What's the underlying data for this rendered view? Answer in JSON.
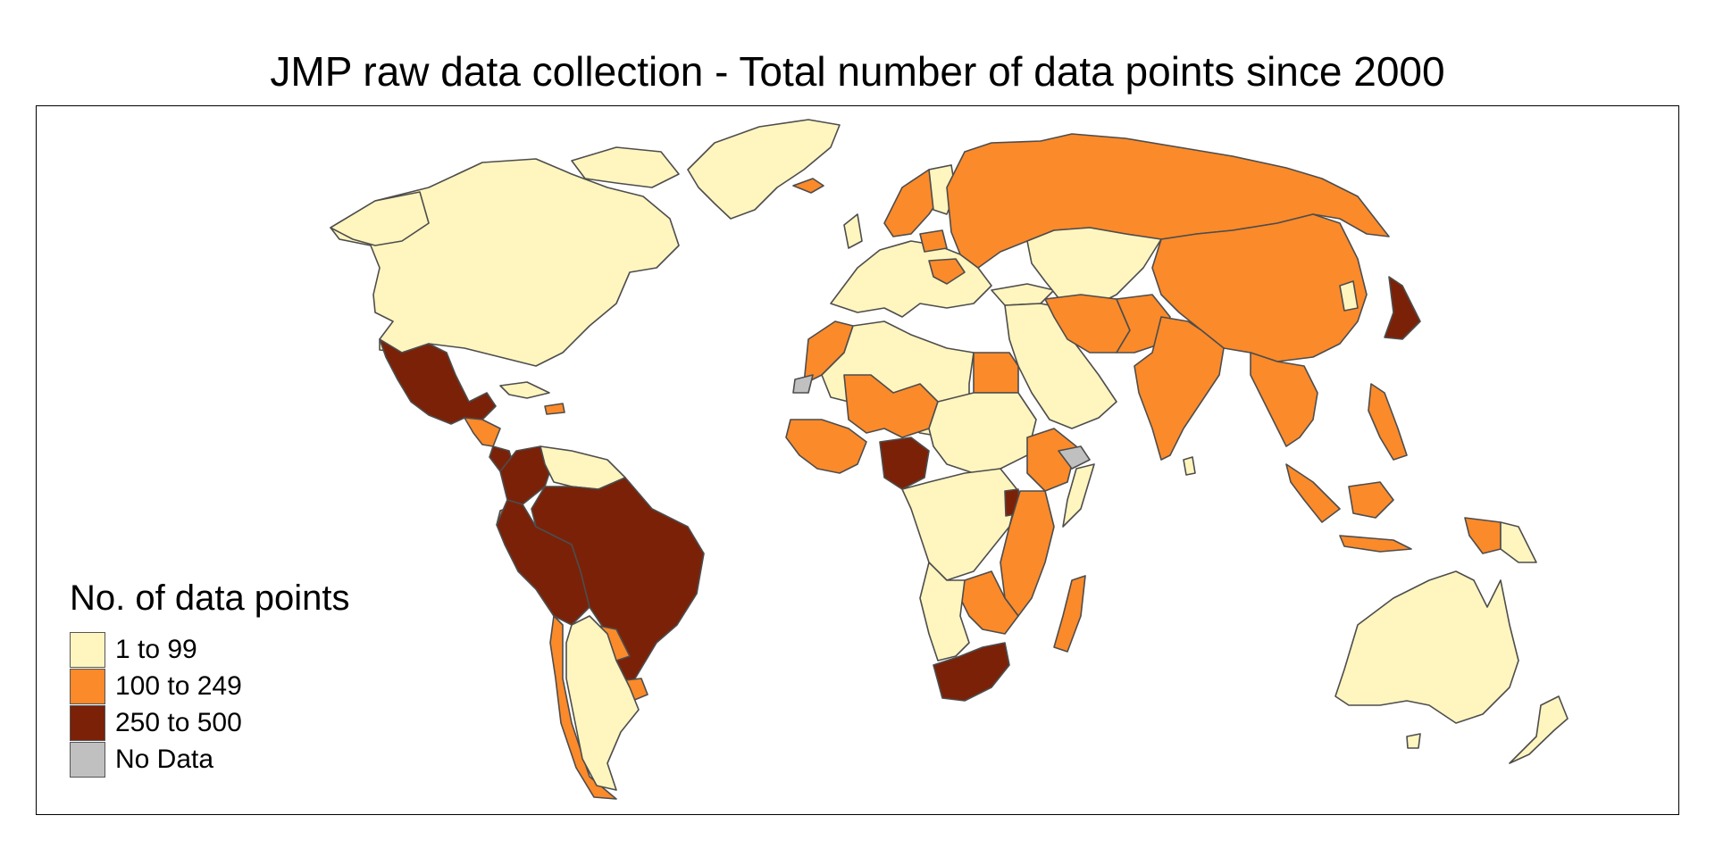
{
  "title": "JMP raw data collection - Total number of data points since 2000",
  "legend": {
    "title": "No. of data points",
    "items": [
      {
        "label": "1 to 99",
        "color": "#fff5bf"
      },
      {
        "label": "100 to 249",
        "color": "#fb8a2a"
      },
      {
        "label": "250 to 500",
        "color": "#7b2108"
      },
      {
        "label": "No Data",
        "color": "#c0c0c0"
      }
    ]
  },
  "colors": {
    "low": "#fff5bf",
    "mid": "#fb8a2a",
    "high": "#7b2108",
    "nodata": "#c0c0c0",
    "border": "#4d4d4d"
  }
}
